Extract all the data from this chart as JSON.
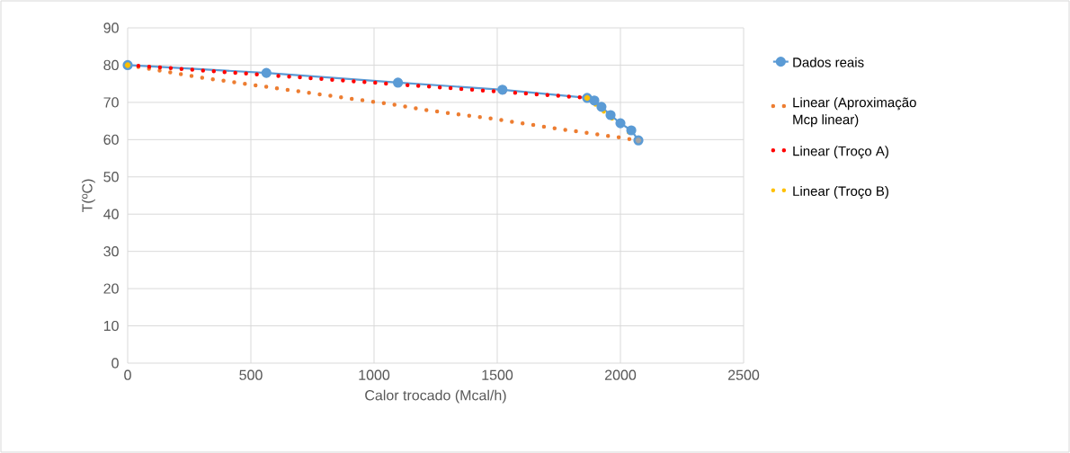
{
  "chart_data": {
    "type": "line",
    "xlabel": "Calor trocado (Mcal/h)",
    "ylabel": "T(ºC)",
    "xlim": [
      0,
      2500
    ],
    "xticks": [
      0,
      500,
      1000,
      1500,
      2000,
      2500
    ],
    "ylim": [
      0,
      90
    ],
    "yticks": [
      0,
      10,
      20,
      30,
      40,
      50,
      60,
      70,
      80,
      90
    ],
    "grid": true,
    "legend": "right",
    "series": [
      {
        "name": "Dados reais",
        "color": "#5b9bd5",
        "marker": "circle",
        "line_style": "solid",
        "x": [
          0,
          563,
          1097,
          1521,
          1865,
          1894,
          1923,
          1960,
          2000,
          2044,
          2073
        ],
        "values": [
          80,
          77.9,
          75.3,
          73.4,
          71.2,
          70.5,
          68.8,
          66.6,
          64.4,
          62.5,
          59.8
        ]
      },
      {
        "name": "Linear (Aproximação Mcp linear)",
        "color": "#ed7d31",
        "marker": "none",
        "line_style": "dotted",
        "x": [
          0,
          314,
          570,
          1090,
          1225,
          1481,
          1737,
          1993,
          2073
        ],
        "values": [
          80,
          76.5,
          74.1,
          69.3,
          67.8,
          65.6,
          63.0,
          60.6,
          59.8
        ]
      },
      {
        "name": "Linear (Troço A)",
        "color": "#ff0000",
        "marker": "none",
        "line_style": "dotted",
        "x": [
          0,
          1865
        ],
        "values": [
          80,
          71.2
        ]
      },
      {
        "name": "Linear (Troço B)",
        "color": "#ffc000",
        "marker": "none",
        "line_style": "dotted",
        "x": [
          1865,
          2073
        ],
        "values": [
          71.2,
          59.8
        ]
      },
      {
        "type": "scatter",
        "marker": "circle",
        "colors": [
          "#ffc000",
          "#ffc000",
          "#a5a5a5"
        ],
        "x": [
          0,
          1865,
          2073
        ],
        "values": [
          80,
          71.2,
          59.8
        ]
      }
    ]
  }
}
